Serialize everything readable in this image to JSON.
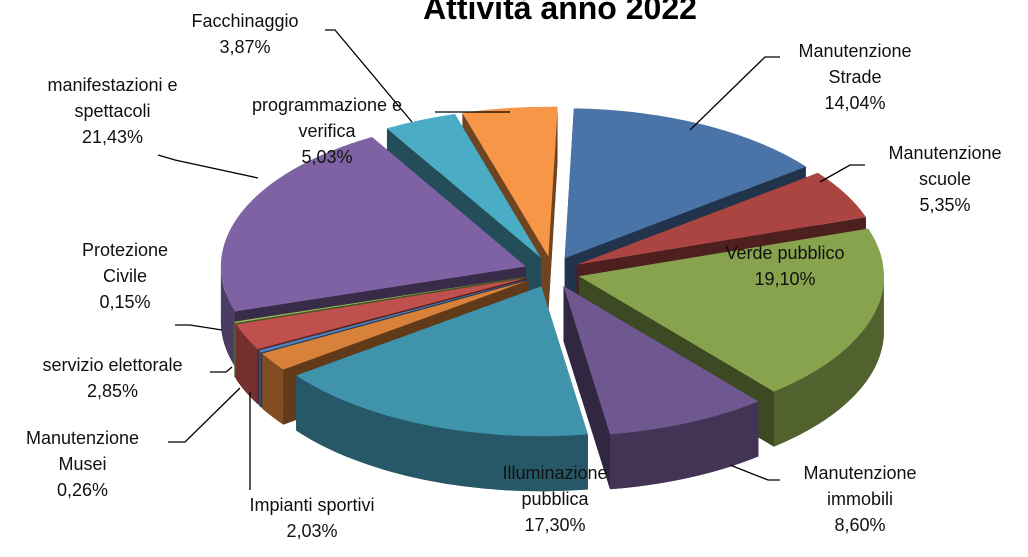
{
  "chart_data": {
    "type": "pie",
    "title": "Attività anno 2022",
    "categories": [
      "Manutenzione Strade",
      "Manutenzione scuole",
      "Verde pubblico",
      "Manutenzione immobili",
      "Illuminazione pubblica",
      "Impianti sportivi",
      "Manutenzione Musei",
      "servizio elettorale",
      "Protezione Civile",
      "manifestazioni e spettacoli",
      "Facchinaggio",
      "programmazione e verifica"
    ],
    "values": [
      14.04,
      5.35,
      19.1,
      8.6,
      17.3,
      2.03,
      0.26,
      2.85,
      0.15,
      21.43,
      3.87,
      5.03
    ],
    "value_labels": [
      "14,04%",
      "5,35%",
      "19,10%",
      "8,60%",
      "17,30%",
      "2,03%",
      "0,26%",
      "2,85%",
      "0,15%",
      "21,43%",
      "3,87%",
      "5,03%"
    ],
    "colors": [
      "#4a73a8",
      "#ab4542",
      "#88a34e",
      "#6f5790",
      "#3f93ab",
      "#d8813a",
      "#4f81bd",
      "#c0504d",
      "#9bbb59",
      "#7f62a3",
      "#4bacc6",
      "#f79646"
    ]
  }
}
